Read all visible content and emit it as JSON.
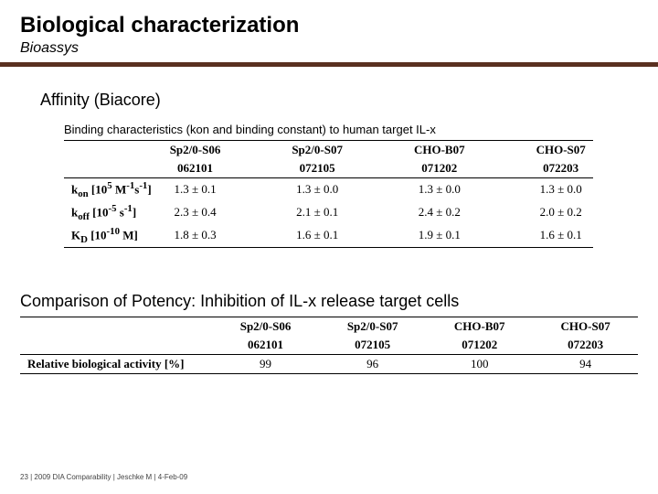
{
  "title": "Biological characterization",
  "subtitle": "Bioassys",
  "affinity": {
    "heading": "Affinity (Biacore)",
    "desc": "Binding characteristics (kon and binding constant) to human target IL-x",
    "columns": [
      {
        "name": "Sp2/0-S06",
        "lot": "062101"
      },
      {
        "name": "Sp2/0-S07",
        "lot": "072105"
      },
      {
        "name": "CHO-B07",
        "lot": "071202"
      },
      {
        "name": "CHO-S07",
        "lot": "072203"
      }
    ],
    "rows": [
      {
        "label_html": "k<sub>on</sub> [10<sup>5</sup> M<sup>-1</sup>s<sup>-1</sup>]",
        "values": [
          "1.3 ± 0.1",
          "1.3 ± 0.0",
          "1.3 ± 0.0",
          "1.3 ± 0.0"
        ]
      },
      {
        "label_html": "k<sub>off</sub> [10<sup>-5</sup> s<sup>-1</sup>]",
        "values": [
          "2.3 ± 0.4",
          "2.1 ± 0.1",
          "2.4 ± 0.2",
          "2.0 ± 0.2"
        ]
      },
      {
        "label_html": "K<sub>D</sub> [10<sup>-10</sup> M]",
        "values": [
          "1.8 ± 0.3",
          "1.6 ± 0.1",
          "1.9 ± 0.1",
          "1.6 ± 0.1"
        ]
      }
    ]
  },
  "potency": {
    "heading": "Comparison of Potency: Inhibition of IL-x release target cells",
    "columns": [
      {
        "name": "Sp2/0-S06",
        "lot": "062101"
      },
      {
        "name": "Sp2/0-S07",
        "lot": "072105"
      },
      {
        "name": "CHO-B07",
        "lot": "071202"
      },
      {
        "name": "CHO-S07",
        "lot": "072203"
      }
    ],
    "row_label": "Relative biological activity [%]",
    "values": [
      "99",
      "96",
      "100",
      "94"
    ]
  },
  "footer": "23 | 2009 DIA Comparability | Jeschke M | 4-Feb-09"
}
